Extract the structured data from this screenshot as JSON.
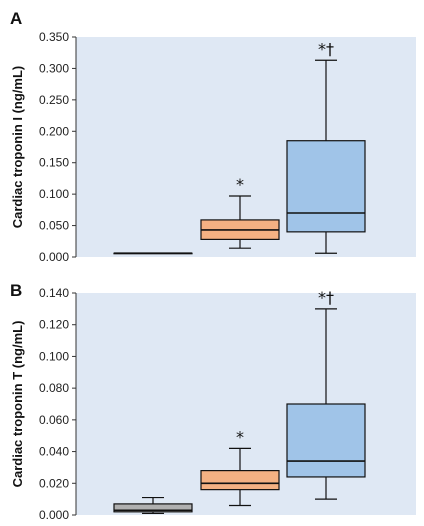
{
  "colors": {
    "plot_background": "#dfe8f4",
    "box_gray": "#b0b0b0",
    "box_orange": "#f4b183",
    "box_blue": "#a0c4e8",
    "stroke": "#111111"
  },
  "chart_data": [
    {
      "type": "box",
      "panel_label": "A",
      "ylabel": "Cardiac troponin I (ng/mL)",
      "ylim": [
        0,
        0.35
      ],
      "yticks": [
        "0.000",
        "0.050",
        "0.100",
        "0.150",
        "0.200",
        "0.250",
        "0.300",
        "0.350"
      ],
      "grid": false,
      "groups": [
        {
          "color": "box_gray",
          "min": 0.006,
          "q1": 0.006,
          "median": 0.006,
          "q3": 0.006,
          "max": 0.006,
          "annotation": ""
        },
        {
          "color": "box_orange",
          "min": 0.014,
          "q1": 0.028,
          "median": 0.043,
          "q3": 0.059,
          "max": 0.097,
          "annotation": "*"
        },
        {
          "color": "box_blue",
          "min": 0.006,
          "q1": 0.04,
          "median": 0.07,
          "q3": 0.185,
          "max": 0.313,
          "annotation": "*†"
        }
      ]
    },
    {
      "type": "box",
      "panel_label": "B",
      "ylabel": "Cardiac troponin T (ng/mL)",
      "ylim": [
        0,
        0.14
      ],
      "yticks": [
        "0.000",
        "0.020",
        "0.040",
        "0.060",
        "0.080",
        "0.100",
        "0.120",
        "0.140"
      ],
      "grid": false,
      "groups": [
        {
          "color": "box_gray",
          "min": 0.001,
          "q1": 0.002,
          "median": 0.003,
          "q3": 0.007,
          "max": 0.011,
          "annotation": ""
        },
        {
          "color": "box_orange",
          "min": 0.006,
          "q1": 0.016,
          "median": 0.02,
          "q3": 0.028,
          "max": 0.042,
          "annotation": "*"
        },
        {
          "color": "box_blue",
          "min": 0.01,
          "q1": 0.024,
          "median": 0.034,
          "q3": 0.07,
          "max": 0.13,
          "annotation": "*†"
        }
      ]
    }
  ]
}
